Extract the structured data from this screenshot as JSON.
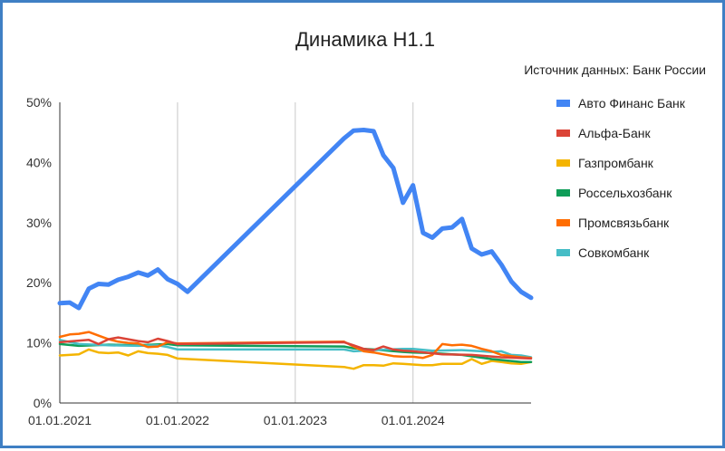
{
  "chart_data": {
    "type": "line",
    "title": "Динамика Н1.1",
    "source_note": "Источник данных: Банк России",
    "xlabel": "",
    "ylabel": "",
    "ylim": [
      0,
      50
    ],
    "y_ticks": [
      "0%",
      "10%",
      "20%",
      "30%",
      "40%",
      "50%"
    ],
    "x_ticks": [
      "01.01.2021",
      "01.01.2022",
      "01.01.2023",
      "01.01.2024"
    ],
    "grid": "vertical at yearly ticks",
    "legend_position": "right",
    "series": [
      {
        "name": "Авто Финанс Банк",
        "color": "#4285f4",
        "x": [
          "2021-01-01",
          "2021-02-01",
          "2021-03-01",
          "2021-04-01",
          "2021-05-01",
          "2021-06-01",
          "2021-07-01",
          "2021-08-01",
          "2021-09-01",
          "2021-10-01",
          "2021-11-01",
          "2021-12-01",
          "2022-01-01",
          "2022-02-01",
          "2023-06-01",
          "2023-07-01",
          "2023-08-01",
          "2023-09-01",
          "2023-10-01",
          "2023-11-01",
          "2023-12-01",
          "2024-01-01",
          "2024-02-01",
          "2024-03-01",
          "2024-04-01",
          "2024-05-01",
          "2024-06-01",
          "2024-07-01",
          "2024-08-01",
          "2024-09-01",
          "2024-10-01",
          "2024-11-01",
          "2024-12-01",
          "2025-01-01"
        ],
        "values": [
          16.6,
          16.7,
          15.8,
          19.0,
          19.8,
          19.7,
          20.5,
          21.0,
          21.7,
          21.2,
          22.2,
          20.6,
          19.8,
          18.5,
          44.0,
          45.3,
          45.4,
          45.2,
          41.2,
          39.1,
          33.3,
          36.2,
          28.3,
          27.5,
          29.0,
          29.2,
          30.6,
          25.7,
          24.7,
          25.2,
          23.0,
          20.2,
          18.5,
          17.5
        ]
      },
      {
        "name": "Альфа-Банк",
        "color": "#db4437",
        "x": [
          "2021-01-01",
          "2021-04-01",
          "2021-05-01",
          "2021-06-01",
          "2021-07-01",
          "2021-08-01",
          "2021-09-01",
          "2021-10-01",
          "2021-11-01",
          "2021-12-01",
          "2022-01-01",
          "2023-06-01",
          "2023-07-01",
          "2023-08-01",
          "2023-09-01",
          "2023-10-01",
          "2023-11-01",
          "2023-12-01",
          "2024-01-01",
          "2024-04-01",
          "2024-07-01",
          "2024-10-01",
          "2025-01-01"
        ],
        "values": [
          10.1,
          10.5,
          9.8,
          10.6,
          10.9,
          10.6,
          10.3,
          10.1,
          10.7,
          10.3,
          9.8,
          10.1,
          9.6,
          9.0,
          8.8,
          9.4,
          8.9,
          8.7,
          8.6,
          8.1,
          8.0,
          7.6,
          7.4
        ]
      },
      {
        "name": "Газпромбанк",
        "color": "#f4b400",
        "x": [
          "2021-01-01",
          "2021-03-01",
          "2021-04-01",
          "2021-05-01",
          "2021-06-01",
          "2021-07-01",
          "2021-08-01",
          "2021-09-01",
          "2021-10-01",
          "2021-11-01",
          "2021-12-01",
          "2022-01-01",
          "2023-06-01",
          "2023-07-01",
          "2023-08-01",
          "2023-09-01",
          "2023-10-01",
          "2023-11-01",
          "2023-12-01",
          "2024-01-01",
          "2024-02-01",
          "2024-03-01",
          "2024-04-01",
          "2024-05-01",
          "2024-06-01",
          "2024-07-01",
          "2024-08-01",
          "2024-09-01",
          "2024-10-01",
          "2024-11-01",
          "2024-12-01",
          "2025-01-01"
        ],
        "values": [
          7.9,
          8.1,
          8.9,
          8.4,
          8.3,
          8.4,
          7.9,
          8.6,
          8.3,
          8.2,
          8.0,
          7.4,
          6.0,
          5.7,
          6.3,
          6.3,
          6.2,
          6.6,
          6.5,
          6.4,
          6.3,
          6.3,
          6.5,
          6.5,
          6.5,
          7.3,
          6.5,
          7.0,
          6.8,
          6.6,
          6.5,
          6.8
        ]
      },
      {
        "name": "Россельхозбанк",
        "color": "#0f9d58",
        "x": [
          "2021-01-01",
          "2021-03-01",
          "2021-06-01",
          "2021-09-01",
          "2021-12-01",
          "2022-01-01",
          "2023-06-01",
          "2023-07-01",
          "2023-09-01",
          "2023-12-01",
          "2024-01-01",
          "2024-03-01",
          "2024-06-01",
          "2024-09-01",
          "2024-12-01",
          "2025-01-01"
        ],
        "values": [
          9.8,
          9.5,
          9.7,
          9.6,
          9.8,
          9.6,
          9.4,
          9.1,
          8.9,
          8.5,
          8.4,
          8.3,
          8.0,
          7.3,
          6.8,
          6.8
        ]
      },
      {
        "name": "Промсвязьбанк",
        "color": "#ff6d01",
        "x": [
          "2021-01-01",
          "2021-02-01",
          "2021-03-01",
          "2021-04-01",
          "2021-05-01",
          "2021-06-01",
          "2021-07-01",
          "2021-08-01",
          "2021-09-01",
          "2021-10-01",
          "2021-11-01",
          "2021-12-01",
          "2022-01-01",
          "2023-06-01",
          "2023-07-01",
          "2023-08-01",
          "2023-09-01",
          "2023-10-01",
          "2023-11-01",
          "2023-12-01",
          "2024-01-01",
          "2024-02-01",
          "2024-03-01",
          "2024-04-01",
          "2024-05-01",
          "2024-06-01",
          "2024-07-01",
          "2024-08-01",
          "2024-09-01",
          "2024-10-01",
          "2024-11-01",
          "2024-12-01",
          "2025-01-01"
        ],
        "values": [
          11.0,
          11.4,
          11.5,
          11.8,
          11.2,
          10.6,
          10.2,
          10.0,
          9.9,
          9.3,
          9.4,
          10.1,
          9.9,
          10.2,
          9.4,
          8.6,
          8.4,
          8.1,
          7.8,
          7.7,
          7.7,
          7.5,
          8.0,
          9.8,
          9.6,
          9.7,
          9.5,
          9.0,
          8.6,
          8.0,
          7.8,
          7.6,
          7.5
        ]
      },
      {
        "name": "Совкомбанк",
        "color": "#46bdc6",
        "x": [
          "2021-01-01",
          "2021-03-01",
          "2021-06-01",
          "2021-09-01",
          "2021-11-01",
          "2021-12-01",
          "2022-01-01",
          "2022-06-01",
          "2023-06-01",
          "2023-07-01",
          "2023-09-01",
          "2023-12-01",
          "2024-01-01",
          "2024-03-01",
          "2024-06-01",
          "2024-08-01",
          "2024-09-01",
          "2024-10-01",
          "2024-11-01",
          "2024-12-01",
          "2025-01-01"
        ],
        "values": [
          10.5,
          9.8,
          9.6,
          9.5,
          9.6,
          9.3,
          8.9,
          8.9,
          8.9,
          8.6,
          8.8,
          9.0,
          9.0,
          8.7,
          8.8,
          8.6,
          8.5,
          8.6,
          8.0,
          7.9,
          7.6
        ]
      }
    ]
  }
}
